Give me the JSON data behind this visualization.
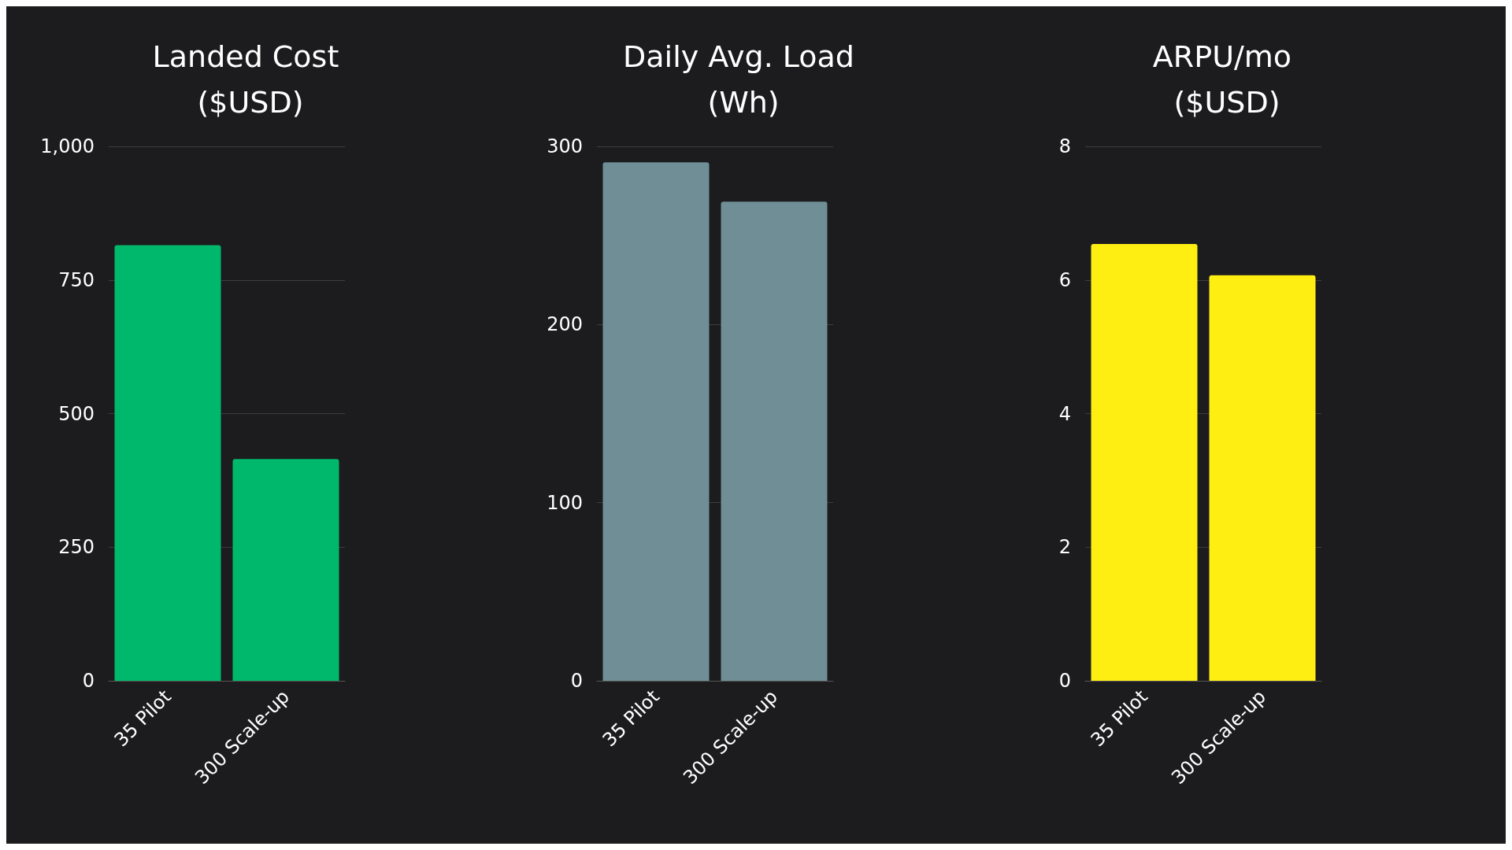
{
  "chart_data": [
    {
      "type": "bar",
      "title": "Landed Cost ($USD)",
      "categories": [
        "35 Pilot",
        "300 Scale-up"
      ],
      "values": [
        815,
        415
      ],
      "color": "#00b86b",
      "ylim": [
        0,
        1000
      ],
      "yticks": [
        0,
        250,
        500,
        750,
        {
          "value": 1000,
          "label": "1,000"
        }
      ],
      "grid": "y"
    },
    {
      "type": "bar",
      "title": "Daily Avg. Load (Wh)",
      "categories": [
        "35 Pilot",
        "300 Scale-up"
      ],
      "values": [
        291,
        269
      ],
      "color": "#6f8e96",
      "ylim": [
        0,
        300
      ],
      "yticks": [
        0,
        100,
        200,
        300
      ],
      "grid": "y"
    },
    {
      "type": "bar",
      "title": "ARPU/mo ($USD)",
      "categories": [
        "35 Pilot",
        "300 Scale-up"
      ],
      "values": [
        6.54,
        6.07
      ],
      "color": "#ffee12",
      "ylim": [
        0,
        8
      ],
      "yticks": [
        0,
        2,
        4,
        6,
        8
      ],
      "grid": "y"
    }
  ]
}
